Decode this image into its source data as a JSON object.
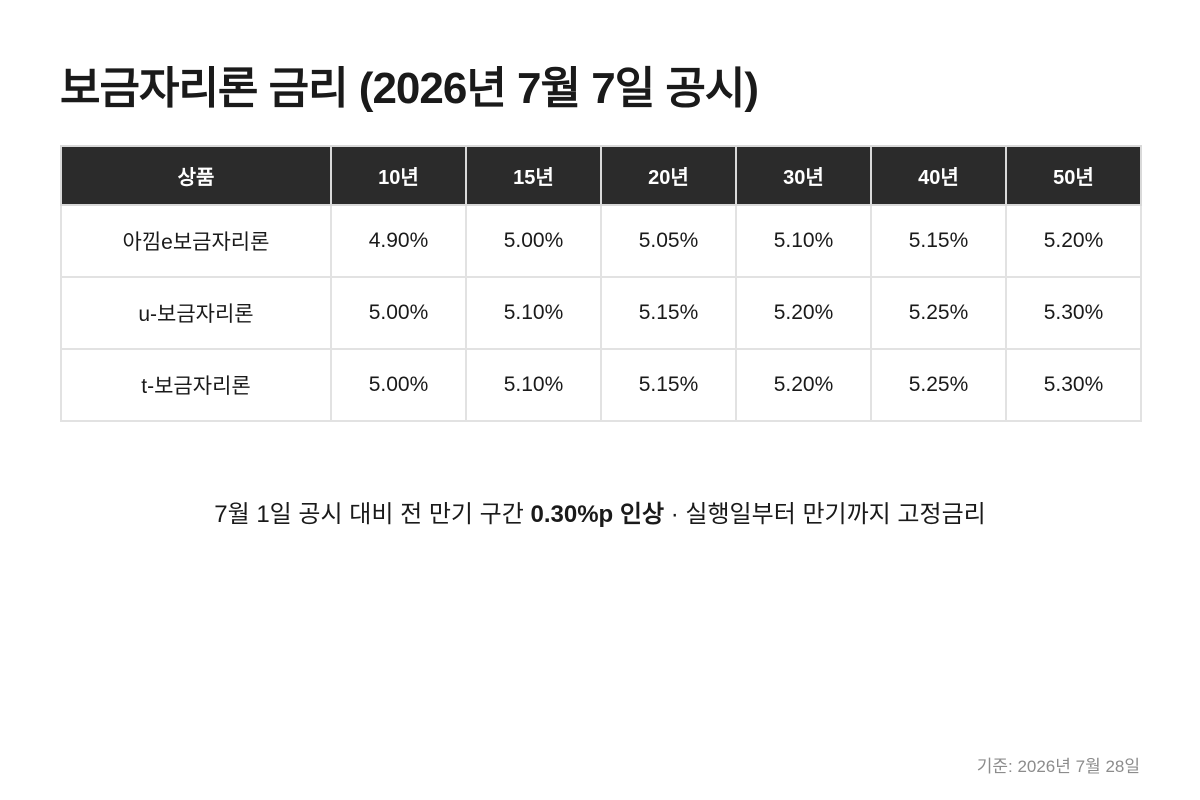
{
  "title": "보금자리론 금리 (2026년 7월 7일 공시)",
  "table": {
    "headers": [
      "상품",
      "10년",
      "15년",
      "20년",
      "30년",
      "40년",
      "50년"
    ],
    "rows": [
      {
        "product": "아낌e보금자리론",
        "rates": [
          "4.90%",
          "5.00%",
          "5.05%",
          "5.10%",
          "5.15%",
          "5.20%"
        ]
      },
      {
        "product": "u-보금자리론",
        "rates": [
          "5.00%",
          "5.10%",
          "5.15%",
          "5.20%",
          "5.25%",
          "5.30%"
        ]
      },
      {
        "product": "t-보금자리론",
        "rates": [
          "5.00%",
          "5.10%",
          "5.15%",
          "5.20%",
          "5.25%",
          "5.30%"
        ]
      }
    ]
  },
  "note": {
    "prefix": "7월 1일 공시 대비 전 만기 구간 ",
    "highlight": "0.30%p 인상",
    "suffix": " · 실행일부터 만기까지 고정금리"
  },
  "basis_date": "기준: 2026년 7월 28일"
}
